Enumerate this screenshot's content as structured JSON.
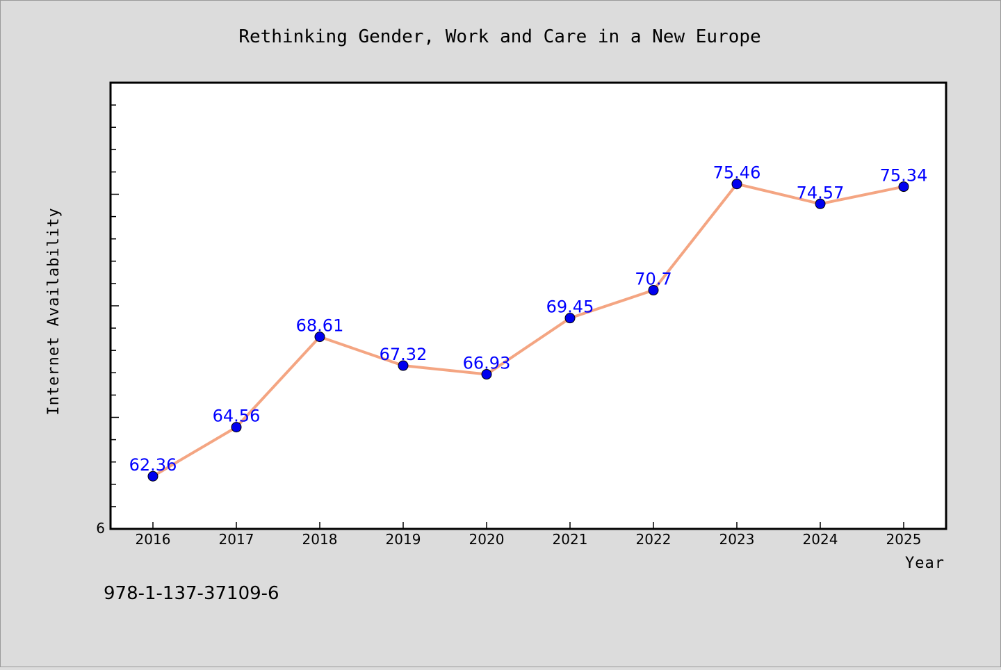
{
  "title": "Rethinking Gender, Work and Care in a New Europe",
  "footer_text": "978-1-137-37109-6",
  "colors": {
    "background": "#dcdcdc",
    "plot_background": "#ffffff",
    "line": "#f4a582",
    "marker": "#0000ee",
    "data_label": "#0000ff"
  },
  "chart_data": {
    "type": "line",
    "title": "Rethinking Gender, Work and Care in a New Europe",
    "xlabel": "Year",
    "ylabel": "Internet Availability",
    "x": [
      "2016",
      "2017",
      "2018",
      "2019",
      "2020",
      "2021",
      "2022",
      "2023",
      "2024",
      "2025"
    ],
    "series": [
      {
        "values": [
          62.36,
          64.56,
          68.61,
          67.32,
          66.93,
          69.45,
          70.7,
          75.46,
          74.57,
          75.34
        ],
        "labels": [
          "62.36",
          "64.56",
          "68.61",
          "67.32",
          "66.93",
          "69.45",
          "70.7",
          "75.46",
          "74.57",
          "75.34"
        ]
      }
    ],
    "ylim": [
      60,
      80
    ],
    "y_tick_labels": [
      "6"
    ],
    "grid": false,
    "legend": "none"
  }
}
